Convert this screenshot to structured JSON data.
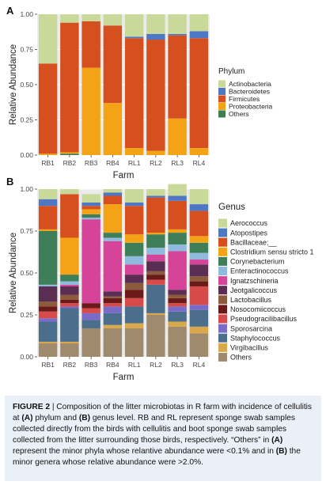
{
  "colors": {
    "Actinobacteria": "#c9d99a",
    "Bacteroidetes": "#4f78c4",
    "Firmicutes": "#d6501f",
    "Proteobacteria": "#f5a316",
    "Others_A": "#3f7d52",
    "Aerococcus": "#c9d99a",
    "Atopostipes": "#4f78c4",
    "Bacillaceae;__": "#d6501f",
    "Clostridium sensu stricto 1": "#f5a316",
    "Corynebacterium": "#3e7f5a",
    "Enteractinococcus": "#8fb9dd",
    "Ignatzschineria": "#d6449a",
    "Jeotgalicoccus": "#5a2d52",
    "Lactobacillus": "#8c5a3c",
    "Nosocomiicoccus": "#6b1a1a",
    "Pseudogracilibacillus": "#d64a4a",
    "Sporosarcina": "#7a6bc8",
    "Staphylococcus": "#4a6e8c",
    "Virgibacillus": "#d9a84a",
    "Others_B": "#a08a6e"
  },
  "chart_data": [
    {
      "panel": "A",
      "type": "bar",
      "stacked": true,
      "xlabel": "Farm",
      "ylabel": "Relative Abundance",
      "ylim": [
        0,
        1
      ],
      "yticks": [
        "0.00",
        "0.25",
        "0.50",
        "0.75",
        "1.00"
      ],
      "categories": [
        "RB1",
        "RB2",
        "RB3",
        "RB4",
        "RL1",
        "RL2",
        "RL3",
        "RL4"
      ],
      "legend_title": "Phylum",
      "legend_placement": "right",
      "series": [
        {
          "name": "Others",
          "key": "Others_A",
          "values": [
            0.0,
            0.01,
            0.0,
            0.0,
            0.0,
            0.0,
            0.0,
            0.0
          ]
        },
        {
          "name": "Proteobacteria",
          "key": "Proteobacteria",
          "values": [
            0.01,
            0.01,
            0.62,
            0.37,
            0.05,
            0.03,
            0.26,
            0.05
          ]
        },
        {
          "name": "Firmicutes",
          "key": "Firmicutes",
          "values": [
            0.64,
            0.92,
            0.33,
            0.55,
            0.78,
            0.79,
            0.59,
            0.78
          ]
        },
        {
          "name": "Bacteroidetes",
          "key": "Bacteroidetes",
          "values": [
            0.0,
            0.0,
            0.0,
            0.0,
            0.01,
            0.04,
            0.01,
            0.05
          ]
        },
        {
          "name": "Actinobacteria",
          "key": "Actinobacteria",
          "values": [
            0.35,
            0.06,
            0.05,
            0.08,
            0.16,
            0.14,
            0.14,
            0.12
          ]
        }
      ]
    },
    {
      "panel": "B",
      "type": "bar",
      "stacked": true,
      "xlabel": "Farm",
      "ylabel": "Relative Abundance",
      "ylim": [
        0,
        1
      ],
      "yticks": [
        "0.00",
        "0.25",
        "0.50",
        "0.75",
        "1.00"
      ],
      "categories": [
        "RB1",
        "RB2",
        "RB3",
        "RB4",
        "RL1",
        "RL2",
        "RL3",
        "RL4"
      ],
      "legend_title": "Genus",
      "legend_placement": "right",
      "series": [
        {
          "name": "Others",
          "key": "Others_B",
          "values": [
            0.08,
            0.08,
            0.17,
            0.17,
            0.17,
            0.25,
            0.18,
            0.14
          ]
        },
        {
          "name": "Virgibacillus",
          "key": "Virgibacillus",
          "values": [
            0.01,
            0.01,
            0.0,
            0.02,
            0.03,
            0.01,
            0.03,
            0.04
          ]
        },
        {
          "name": "Staphylococcus",
          "key": "Staphylococcus",
          "values": [
            0.12,
            0.2,
            0.05,
            0.07,
            0.1,
            0.17,
            0.06,
            0.1
          ]
        },
        {
          "name": "Sporosarcina",
          "key": "Sporosarcina",
          "values": [
            0.02,
            0.01,
            0.04,
            0.04,
            0.0,
            0.0,
            0.03,
            0.03
          ]
        },
        {
          "name": "Pseudogracilibacillus",
          "key": "Pseudogracilibacillus",
          "values": [
            0.04,
            0.02,
            0.03,
            0.02,
            0.05,
            0.03,
            0.02,
            0.11
          ]
        },
        {
          "name": "Nosocomiicoccus",
          "key": "Nosocomiicoccus",
          "values": [
            0.03,
            0.02,
            0.03,
            0.03,
            0.05,
            0.03,
            0.03,
            0.03
          ]
        },
        {
          "name": "Lactobacillus",
          "key": "Lactobacillus",
          "values": [
            0.03,
            0.03,
            0.0,
            0.01,
            0.04,
            0.02,
            0.02,
            0.03
          ]
        },
        {
          "name": "Jeotgalicoccus",
          "key": "Jeotgalicoccus",
          "values": [
            0.09,
            0.05,
            0.0,
            0.03,
            0.05,
            0.06,
            0.03,
            0.07
          ]
        },
        {
          "name": "Ignatzschineria",
          "key": "Ignatzschineria",
          "values": [
            0.0,
            0.01,
            0.5,
            0.3,
            0.06,
            0.04,
            0.23,
            0.03
          ]
        },
        {
          "name": "Enteractinococcus",
          "key": "Enteractinococcus",
          "values": [
            0.01,
            0.02,
            0.01,
            0.02,
            0.05,
            0.04,
            0.04,
            0.04
          ]
        },
        {
          "name": "Corynebacterium",
          "key": "Corynebacterium",
          "values": [
            0.32,
            0.04,
            0.02,
            0.03,
            0.08,
            0.08,
            0.07,
            0.06
          ]
        },
        {
          "name": "Clostridium sensu stricto 1",
          "key": "Clostridium sensu stricto 1",
          "values": [
            0.01,
            0.22,
            0.03,
            0.17,
            0.05,
            0.01,
            0.02,
            0.04
          ]
        },
        {
          "name": "Bacillaceae;__",
          "key": "Bacillaceae;__",
          "values": [
            0.14,
            0.26,
            0.02,
            0.05,
            0.17,
            0.21,
            0.17,
            0.15
          ]
        },
        {
          "name": "Atopostipes",
          "key": "Atopostipes",
          "values": [
            0.04,
            0.0,
            0.02,
            0.02,
            0.02,
            0.01,
            0.03,
            0.04
          ]
        },
        {
          "name": "Aerococcus",
          "key": "Aerococcus",
          "values": [
            0.06,
            0.03,
            0.05,
            0.02,
            0.08,
            0.04,
            0.07,
            0.09
          ]
        }
      ],
      "legend_order": [
        "Aerococcus",
        "Atopostipes",
        "Bacillaceae;__",
        "Clostridium sensu stricto 1",
        "Corynebacterium",
        "Enteractinococcus",
        "Ignatzschineria",
        "Jeotgalicoccus",
        "Lactobacillus",
        "Nosocomiicoccus",
        "Pseudogracilibacillus",
        "Sporosarcina",
        "Staphylococcus",
        "Virgibacillus",
        "Others"
      ]
    }
  ],
  "caption": {
    "label": "FIGURE 2",
    "separator": " | ",
    "text_1": "Composition of the litter microbiotas in R farm with incidence of cellulitis at ",
    "ref_a1": "(A)",
    "text_2": " phylum and ",
    "ref_b1": "(B)",
    "text_3": " genus level. RB and RL represent sponge swab samples collected directly from the birds with cellulitis and boot sponge swab samples collected from the litter surrounding those birds, respectively. “Others” in ",
    "ref_a2": "(A)",
    "text_4": " represent the minor phyla whose relantive abundance were <0.1% and in ",
    "ref_b2": "(B)",
    "text_5": " the minor genera whose relative abundance were >2.0%."
  }
}
